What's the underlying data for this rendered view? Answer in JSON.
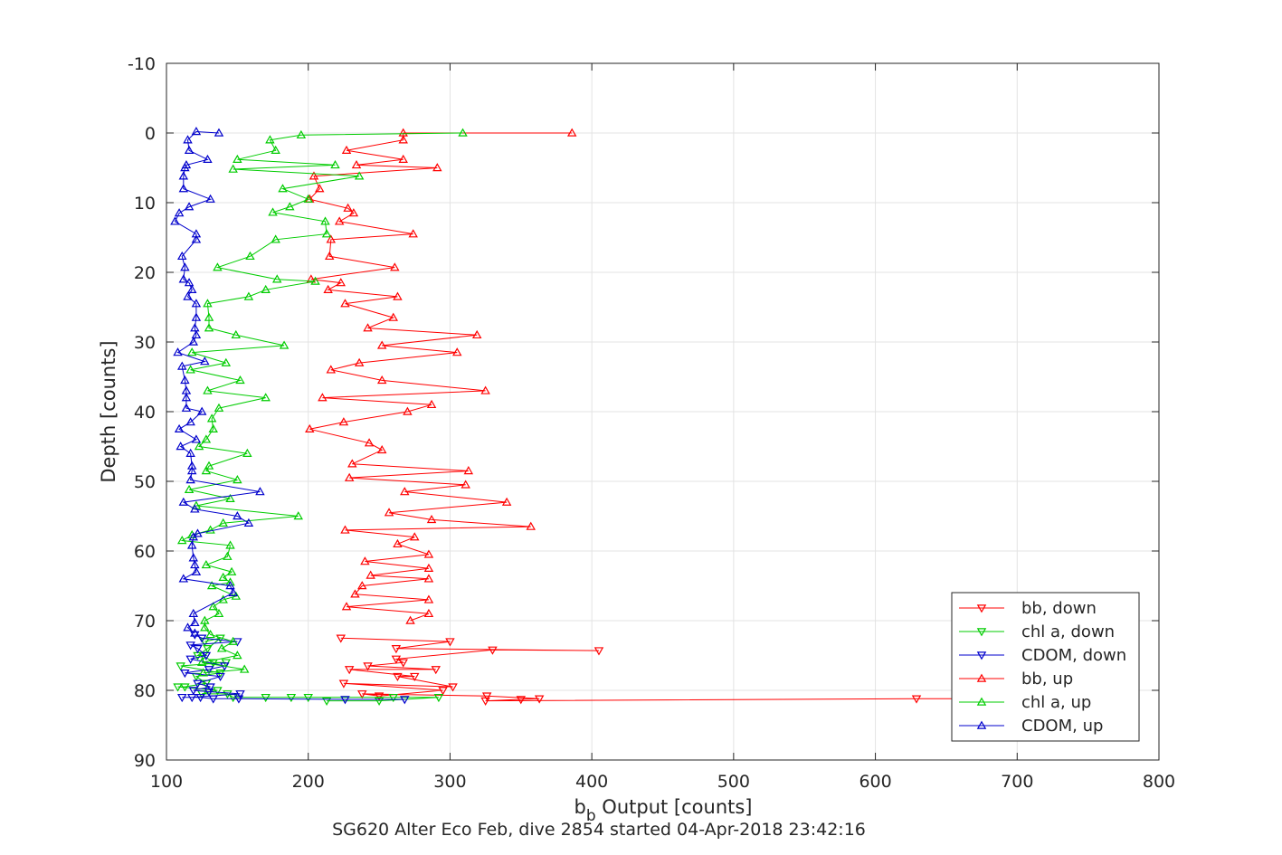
{
  "chart_data": {
    "type": "line",
    "title": "SG620 Alter Eco Feb, dive 2854 started 04-Apr-2018 23:42:16",
    "xlabel_main": "b",
    "xlabel_sub": "b",
    "xlabel_rest": " Output [counts]",
    "ylabel": "Depth [counts]",
    "xlim": [
      100,
      800
    ],
    "ylim": [
      -10,
      90
    ],
    "y_reversed": true,
    "grid": true,
    "xticks": [
      100,
      200,
      300,
      400,
      500,
      600,
      700,
      800
    ],
    "yticks": [
      -10,
      0,
      10,
      20,
      30,
      40,
      50,
      60,
      70,
      80,
      90
    ],
    "legend_position": "bottom-right",
    "series": [
      {
        "name": "bb, down",
        "color": "#ff0000",
        "marker": "triangle-down",
        "points": [
          [
            223,
            72.5
          ],
          [
            300,
            73
          ],
          [
            262,
            74
          ],
          [
            405,
            74.3
          ],
          [
            330,
            74.2
          ],
          [
            262,
            75.5
          ],
          [
            267,
            76
          ],
          [
            242,
            76.5
          ],
          [
            290,
            77
          ],
          [
            229,
            77
          ],
          [
            275,
            78
          ],
          [
            263,
            78
          ],
          [
            302,
            79.5
          ],
          [
            225,
            79
          ],
          [
            295,
            80
          ],
          [
            250,
            80.8
          ],
          [
            238,
            80.5
          ],
          [
            326,
            80.8
          ],
          [
            363,
            81.2
          ],
          [
            350,
            81.3
          ],
          [
            325,
            81.5
          ],
          [
            629,
            81.2
          ],
          [
            720,
            81.2
          ]
        ]
      },
      {
        "name": "chl a, down",
        "color": "#00cc00",
        "marker": "triangle-down",
        "points": [
          [
            127,
            73
          ],
          [
            138,
            72.5
          ],
          [
            129,
            74
          ],
          [
            122,
            75
          ],
          [
            126,
            75
          ],
          [
            133,
            76
          ],
          [
            142,
            76
          ],
          [
            110,
            76.5
          ],
          [
            138,
            77.5
          ],
          [
            121,
            78
          ],
          [
            128,
            79
          ],
          [
            113,
            79.5
          ],
          [
            108,
            79.5
          ],
          [
            136,
            80
          ],
          [
            125,
            80.5
          ],
          [
            143,
            80.5
          ],
          [
            147,
            81
          ],
          [
            170,
            81
          ],
          [
            188,
            81
          ],
          [
            200,
            81
          ],
          [
            260,
            81
          ],
          [
            292,
            81
          ],
          [
            250,
            81.5
          ],
          [
            213,
            81.5
          ]
        ]
      },
      {
        "name": "CDOM, down",
        "color": "#0000cc",
        "marker": "triangle-down",
        "points": [
          [
            120,
            72
          ],
          [
            125,
            72.5
          ],
          [
            150,
            73
          ],
          [
            117,
            73.5
          ],
          [
            122,
            74
          ],
          [
            128,
            75
          ],
          [
            117,
            75.5
          ],
          [
            141,
            76.5
          ],
          [
            130,
            77
          ],
          [
            113,
            77.5
          ],
          [
            138,
            78
          ],
          [
            122,
            79
          ],
          [
            131,
            79.5
          ],
          [
            119,
            80
          ],
          [
            130,
            80.2
          ],
          [
            152,
            80.5
          ],
          [
            118,
            81
          ],
          [
            111,
            81
          ],
          [
            124,
            81
          ],
          [
            133,
            81.2
          ],
          [
            151,
            81.2
          ],
          [
            226,
            81.3
          ],
          [
            268,
            81.3
          ]
        ]
      },
      {
        "name": "bb, up",
        "color": "#ff0000",
        "marker": "triangle-up",
        "points": [
          [
            386,
            0
          ],
          [
            267,
            0
          ],
          [
            267,
            1
          ],
          [
            227,
            2.5
          ],
          [
            267,
            3.8
          ],
          [
            234,
            4.6
          ],
          [
            291,
            5
          ],
          [
            204,
            6.2
          ],
          [
            208,
            8
          ],
          [
            201,
            9.5
          ],
          [
            228,
            10.8
          ],
          [
            232,
            11.5
          ],
          [
            222,
            12.7
          ],
          [
            274,
            14.5
          ],
          [
            216,
            15.3
          ],
          [
            215,
            17.7
          ],
          [
            261,
            19.3
          ],
          [
            202,
            21
          ],
          [
            223,
            21.5
          ],
          [
            214,
            22.5
          ],
          [
            263,
            23.5
          ],
          [
            226,
            24.5
          ],
          [
            260,
            26.5
          ],
          [
            242,
            28
          ],
          [
            319,
            29
          ],
          [
            252,
            30.5
          ],
          [
            305,
            31.5
          ],
          [
            236,
            33
          ],
          [
            216,
            34
          ],
          [
            252,
            35.5
          ],
          [
            325,
            37
          ],
          [
            210,
            38
          ],
          [
            287,
            39
          ],
          [
            270,
            40
          ],
          [
            225,
            41.5
          ],
          [
            201,
            42.5
          ],
          [
            243,
            44.5
          ],
          [
            252,
            45.5
          ],
          [
            231,
            47.5
          ],
          [
            313,
            48.5
          ],
          [
            229,
            49.5
          ],
          [
            311,
            50.5
          ],
          [
            268,
            51.5
          ],
          [
            340,
            53
          ],
          [
            257,
            54.5
          ],
          [
            287,
            55.5
          ],
          [
            357,
            56.5
          ],
          [
            226,
            57
          ],
          [
            275,
            58
          ],
          [
            263,
            59
          ],
          [
            285,
            60.5
          ],
          [
            240,
            61.5
          ],
          [
            285,
            62.5
          ],
          [
            244,
            63.5
          ],
          [
            285,
            64
          ],
          [
            238,
            65
          ],
          [
            233,
            66.2
          ],
          [
            285,
            67
          ],
          [
            227,
            68
          ],
          [
            285,
            69
          ],
          [
            272,
            70
          ]
        ]
      },
      {
        "name": "chl a, up",
        "color": "#00cc00",
        "marker": "triangle-up",
        "points": [
          [
            309,
            0
          ],
          [
            195,
            0.3
          ],
          [
            173,
            1
          ],
          [
            177,
            2.5
          ],
          [
            150,
            3.8
          ],
          [
            219,
            4.6
          ],
          [
            147,
            5.2
          ],
          [
            236,
            6.2
          ],
          [
            182,
            8
          ],
          [
            200,
            9.5
          ],
          [
            187,
            10.6
          ],
          [
            175,
            11.4
          ],
          [
            212,
            12.7
          ],
          [
            213,
            14.5
          ],
          [
            177,
            15.3
          ],
          [
            159,
            17.7
          ],
          [
            136,
            19.3
          ],
          [
            178,
            21
          ],
          [
            205,
            21.3
          ],
          [
            170,
            22.5
          ],
          [
            158,
            23.5
          ],
          [
            129,
            24.5
          ],
          [
            130,
            26.5
          ],
          [
            130,
            28
          ],
          [
            149,
            29
          ],
          [
            183,
            30.5
          ],
          [
            118,
            31.5
          ],
          [
            142,
            33
          ],
          [
            117,
            34
          ],
          [
            152,
            35.5
          ],
          [
            129,
            37
          ],
          [
            170,
            38
          ],
          [
            137,
            39.5
          ],
          [
            132,
            41
          ],
          [
            133,
            42.5
          ],
          [
            128,
            44
          ],
          [
            123,
            45
          ],
          [
            157,
            46
          ],
          [
            130,
            47.8
          ],
          [
            128,
            48.5
          ],
          [
            150,
            49.8
          ],
          [
            116,
            51.2
          ],
          [
            145,
            52.5
          ],
          [
            121,
            53.5
          ],
          [
            193,
            55
          ],
          [
            140,
            56
          ],
          [
            131,
            57
          ],
          [
            118,
            57.7
          ],
          [
            111,
            58.5
          ],
          [
            145,
            59.2
          ],
          [
            143,
            60.8
          ],
          [
            128,
            62
          ],
          [
            146,
            63
          ],
          [
            140,
            63.8
          ],
          [
            145,
            64.5
          ],
          [
            132,
            65
          ],
          [
            149,
            66.5
          ],
          [
            140,
            67
          ],
          [
            133,
            68
          ],
          [
            137,
            69
          ],
          [
            127,
            70
          ],
          [
            127,
            71
          ],
          [
            131,
            72
          ],
          [
            147,
            73
          ],
          [
            139,
            74
          ],
          [
            150,
            75
          ],
          [
            125,
            76
          ],
          [
            155,
            77
          ],
          [
            126,
            77.5
          ]
        ]
      },
      {
        "name": "CDOM, up",
        "color": "#0000cc",
        "marker": "triangle-up",
        "points": [
          [
            137,
            0
          ],
          [
            121,
            -0.2
          ],
          [
            115,
            1
          ],
          [
            116,
            2.5
          ],
          [
            129,
            3.8
          ],
          [
            114,
            4.6
          ],
          [
            113,
            5
          ],
          [
            112,
            6.2
          ],
          [
            112,
            8
          ],
          [
            131,
            9.5
          ],
          [
            116,
            10.6
          ],
          [
            109,
            11.5
          ],
          [
            106,
            12.7
          ],
          [
            121,
            14.5
          ],
          [
            121,
            15.3
          ],
          [
            111,
            17.7
          ],
          [
            113,
            19.3
          ],
          [
            112,
            21
          ],
          [
            116,
            21.5
          ],
          [
            118,
            22.5
          ],
          [
            115,
            23.5
          ],
          [
            121,
            24.5
          ],
          [
            121,
            26.5
          ],
          [
            120,
            28
          ],
          [
            121,
            29
          ],
          [
            119,
            30
          ],
          [
            108,
            31.5
          ],
          [
            127,
            32.8
          ],
          [
            111,
            33.5
          ],
          [
            113,
            35.5
          ],
          [
            114,
            37
          ],
          [
            114,
            38
          ],
          [
            114,
            39.5
          ],
          [
            125,
            40
          ],
          [
            117,
            41.5
          ],
          [
            109,
            42.5
          ],
          [
            121,
            44
          ],
          [
            110,
            45
          ],
          [
            117,
            46
          ],
          [
            118,
            47.8
          ],
          [
            118,
            48.5
          ],
          [
            117,
            49.8
          ],
          [
            166,
            51.5
          ],
          [
            112,
            53
          ],
          [
            120,
            54
          ],
          [
            150,
            55
          ],
          [
            158,
            56
          ],
          [
            122,
            57.5
          ],
          [
            119,
            58
          ],
          [
            118,
            59.2
          ],
          [
            119,
            61
          ],
          [
            120,
            62
          ],
          [
            121,
            63
          ],
          [
            112,
            64
          ],
          [
            145,
            65
          ],
          [
            147,
            66
          ],
          [
            119,
            69
          ],
          [
            120,
            70.3
          ],
          [
            115,
            71
          ],
          [
            120,
            71.8
          ]
        ]
      }
    ]
  }
}
